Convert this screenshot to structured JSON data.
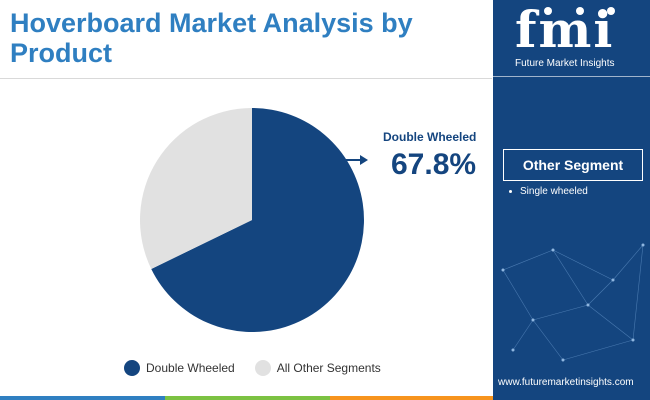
{
  "title": "Hoverboard  Market  Analysis by Product",
  "chart_data": {
    "type": "pie",
    "slices": [
      {
        "name": "Double Wheeled",
        "value": 67.8,
        "color": "#14457f"
      },
      {
        "name": "All Other Segments",
        "value": 32.2,
        "color": "#e1e1e1"
      }
    ],
    "legend_position": "bottom",
    "callout": {
      "label": "Double Wheeled",
      "value": "67.8%"
    }
  },
  "side_panel": {
    "logo_text": "fmi",
    "logo_subtitle": "Future Market Insights",
    "segment_heading": "Other Segment",
    "segments": [
      "Single wheeled"
    ],
    "website": "www.futuremarketinsights.com"
  },
  "colors": {
    "title": "#2f7fc1",
    "primary": "#14457f",
    "secondary": "#e1e1e1",
    "bottom_bar": [
      "#2f7fc1",
      "#7cc242",
      "#f7941d",
      "#8dc63f"
    ]
  }
}
